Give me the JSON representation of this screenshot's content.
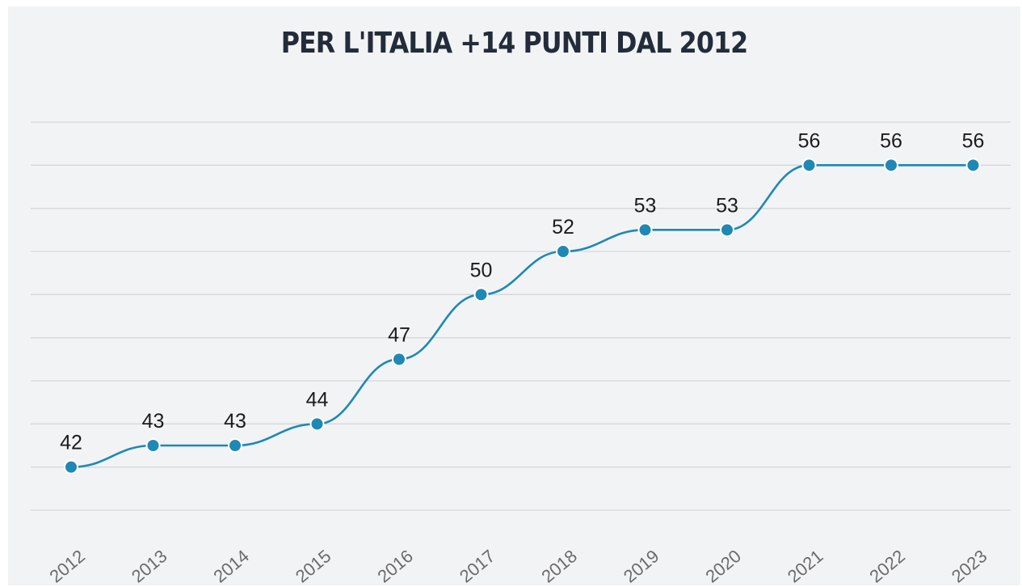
{
  "chart_data": {
    "type": "line",
    "title": "PER L'ITALIA +14 PUNTI DAL 2012",
    "xlabel": "",
    "ylabel": "",
    "categories": [
      "2012",
      "2013",
      "2014",
      "2015",
      "2016",
      "2017",
      "2018",
      "2019",
      "2020",
      "2021",
      "2022",
      "2023"
    ],
    "values": [
      42,
      43,
      43,
      44,
      47,
      50,
      52,
      53,
      53,
      56,
      56,
      56
    ],
    "ylim": [
      40,
      58
    ],
    "grid": true,
    "y_tick_labels_visible": false,
    "data_labels": true,
    "x_tick_rotation": "diagonal",
    "line_color": "#1f88b5",
    "smooth": true
  }
}
